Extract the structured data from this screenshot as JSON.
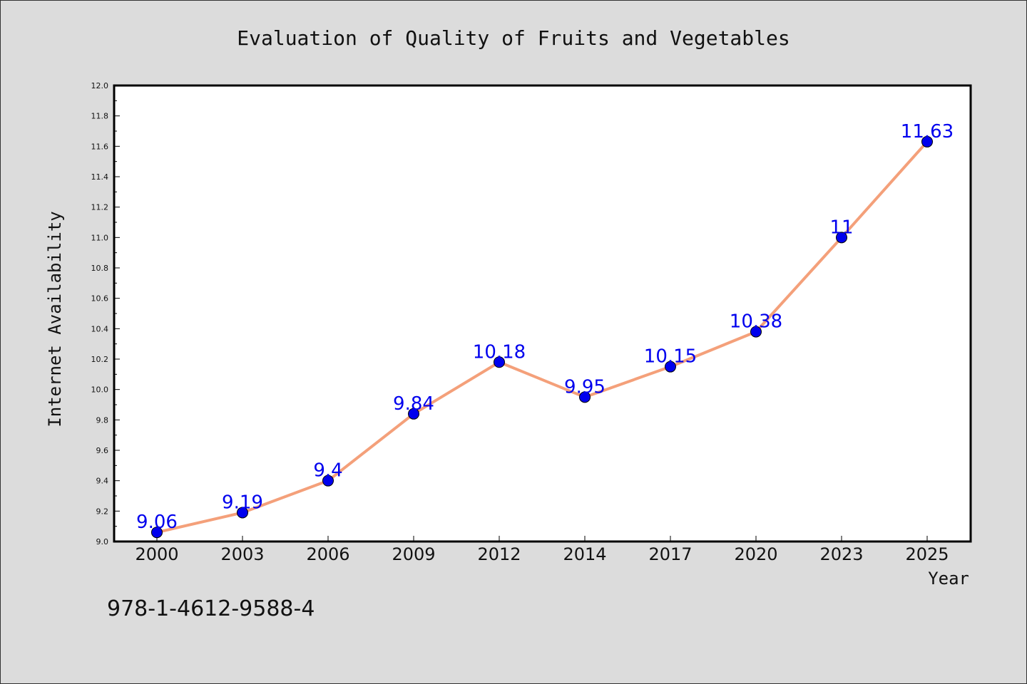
{
  "chart_data": {
    "type": "line",
    "title": "Evaluation of Quality of Fruits and Vegetables",
    "xlabel": "Year",
    "ylabel": "Internet Availability",
    "categories": [
      "2000",
      "2003",
      "2006",
      "2009",
      "2012",
      "2014",
      "2017",
      "2020",
      "2023",
      "2025"
    ],
    "series": [
      {
        "values": [
          9.06,
          9.19,
          9.4,
          9.84,
          10.18,
          9.95,
          10.15,
          10.38,
          11,
          11.63
        ],
        "data_labels": [
          "9.06",
          "9.19",
          "9.4",
          "9.84",
          "10.18",
          "9.95",
          "10.15",
          "10.38",
          "11",
          "11.63"
        ]
      }
    ],
    "ylim": [
      9.0,
      12.0
    ],
    "yticks": [
      "9.0",
      "9.2",
      "9.4",
      "9.6",
      "9.8",
      "10.0",
      "10.2",
      "10.4",
      "10.6",
      "10.8",
      "11.0",
      "11.2",
      "11.4",
      "11.6",
      "11.8",
      "12.0"
    ],
    "grid": false,
    "colors": {
      "line": "#f4a07a",
      "marker": "#0000ee",
      "label": "#0000ee",
      "plot_background": "#ffffff",
      "figure_background": "#dcdcdc"
    }
  },
  "footer": {
    "isbn": "978-1-4612-9588-4"
  }
}
